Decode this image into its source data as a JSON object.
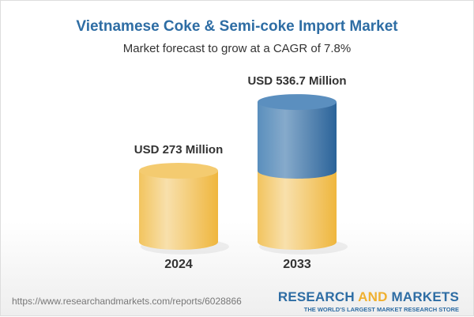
{
  "title": "Vietnamese Coke & Semi-coke Import Market",
  "subtitle": "Market forecast to grow at a CAGR of 7.8%",
  "chart_data": {
    "type": "bar",
    "style": "3d-cylinder",
    "categories": [
      "2024",
      "2033"
    ],
    "values": [
      273,
      536.7
    ],
    "data_labels": [
      "USD 273 Million",
      "USD 536.7 Million"
    ],
    "unit": "USD Million",
    "colors": {
      "base": "#f3c35a",
      "growth": "#3f79ab"
    }
  },
  "footer": {
    "url": "https://www.researchandmarkets.com/reports/6028866",
    "logo_word1": "RESEARCH",
    "logo_word2": "AND",
    "logo_word3": "MARKETS",
    "tagline": "THE WORLD'S LARGEST MARKET RESEARCH STORE"
  }
}
